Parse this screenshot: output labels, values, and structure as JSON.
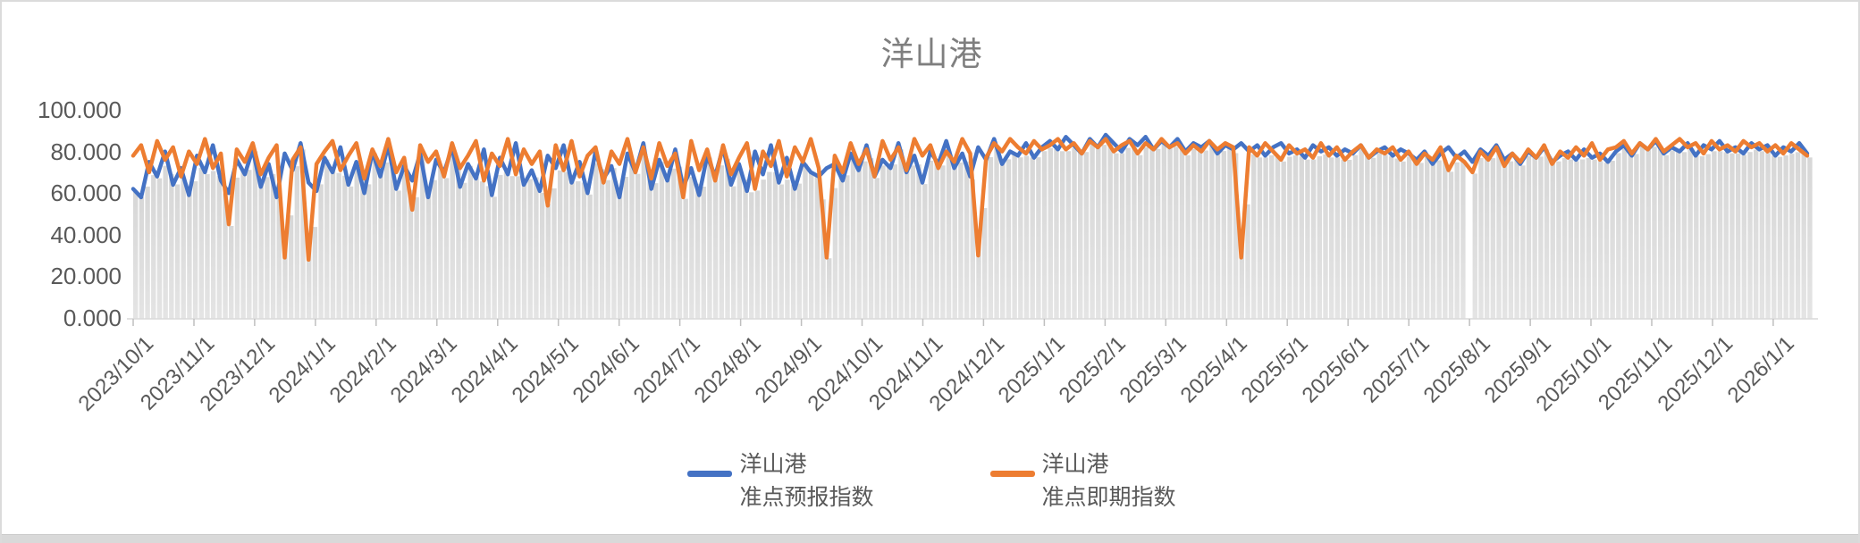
{
  "window": {
    "background": "#ffffff",
    "frame_border_color": "#dbdbdb",
    "bottom_strip_color": "#d9d9d9"
  },
  "chart_data": {
    "type": "line",
    "title": "洋山港",
    "title_color": "#7f7f7f",
    "axis_text_color": "#595959",
    "axis_line_color": "#d9d9d9",
    "grid": "none",
    "legend_position": "bottom",
    "ylim": [
      0,
      100
    ],
    "y_axis_labels": [
      "0.000",
      "20.000",
      "40.000",
      "60.000",
      "80.000",
      "100.000"
    ],
    "y_axis_values": [
      0,
      20,
      40,
      60,
      80,
      100
    ],
    "x_tick_labels": [
      "2023/10/1",
      "2023/11/1",
      "2023/12/1",
      "2024/1/1",
      "2024/2/1",
      "2024/3/1",
      "2024/4/1",
      "2024/5/1",
      "2024/6/1",
      "2024/7/1",
      "2024/8/1",
      "2024/9/1",
      "2024/10/1",
      "2024/11/1",
      "2024/12/1",
      "2025/1/1",
      "2025/2/1",
      "2025/3/1",
      "2025/4/1",
      "2025/5/1",
      "2025/6/1",
      "2025/7/1",
      "2025/8/1",
      "2025/9/1",
      "2025/10/1",
      "2025/11/1",
      "2025/12/1",
      "2026/1/1"
    ],
    "x_start_date": "2023/10/1",
    "x_end_date_approx": "2026/1/20",
    "sample_step_days": 4,
    "background_bars": {
      "description": "light gray vertical bars under the lines tracking the lower envelope of the two series",
      "color_top": "#d7d7d7",
      "color_bottom": "#e4e4e4",
      "gap_days_from_start": [
        667,
        671
      ]
    },
    "series": [
      {
        "name": "洋山港 准点预报指数",
        "color": "#4472C4",
        "values": [
          62,
          58,
          75,
          68,
          80,
          64,
          72,
          59,
          78,
          70,
          83,
          66,
          60,
          76,
          69,
          81,
          63,
          74,
          58,
          79,
          71,
          84,
          65,
          61,
          77,
          70,
          82,
          64,
          75,
          60,
          80,
          68,
          83,
          62,
          73,
          66,
          79,
          58,
          76,
          70,
          82,
          63,
          74,
          67,
          81,
          59,
          77,
          69,
          84,
          64,
          71,
          61,
          78,
          72,
          83,
          65,
          75,
          60,
          80,
          67,
          73,
          58,
          79,
          70,
          84,
          62,
          76,
          66,
          81,
          63,
          72,
          59,
          78,
          68,
          82,
          64,
          74,
          61,
          80,
          69,
          83,
          65,
          77,
          62,
          75,
          70,
          68,
          72,
          74,
          66,
          79,
          71,
          83,
          68,
          76,
          72,
          84,
          70,
          78,
          65,
          80,
          74,
          85,
          72,
          79,
          68,
          82,
          76,
          86,
          74,
          80,
          78,
          84,
          77,
          82,
          85,
          81,
          87,
          83,
          79,
          86,
          82,
          88,
          84,
          80,
          86,
          83,
          87,
          81,
          85,
          82,
          86,
          80,
          84,
          82,
          85,
          79,
          83,
          81,
          84,
          80,
          83,
          78,
          82,
          84,
          79,
          81,
          77,
          83,
          80,
          82,
          78,
          81,
          79,
          83,
          77,
          80,
          82,
          78,
          81,
          79,
          76,
          80,
          74,
          79,
          82,
          77,
          80,
          75,
          81,
          78,
          83,
          76,
          79,
          74,
          80,
          77,
          82,
          75,
          78,
          80,
          76,
          81,
          77,
          79,
          75,
          80,
          83,
          78,
          84,
          81,
          85,
          79,
          82,
          80,
          84,
          78,
          83,
          81,
          85,
          80,
          82,
          79,
          84,
          81,
          83,
          78,
          82,
          80,
          84,
          79
        ]
      },
      {
        "name": "洋山港 准点即期指数",
        "color": "#ED7D31",
        "values": [
          78,
          83,
          70,
          85,
          76,
          82,
          68,
          80,
          74,
          86,
          72,
          79,
          45,
          81,
          75,
          84,
          69,
          77,
          83,
          29,
          76,
          82,
          28,
          74,
          80,
          85,
          71,
          78,
          84,
          67,
          81,
          73,
          86,
          70,
          77,
          52,
          83,
          75,
          80,
          68,
          84,
          72,
          78,
          85,
          66,
          79,
          73,
          86,
          69,
          81,
          74,
          80,
          54,
          83,
          71,
          85,
          68,
          78,
          82,
          65,
          80,
          74,
          86,
          70,
          82,
          67,
          84,
          73,
          79,
          58,
          85,
          71,
          81,
          66,
          83,
          69,
          77,
          84,
          62,
          80,
          73,
          85,
          68,
          82,
          75,
          86,
          72,
          29,
          78,
          70,
          84,
          74,
          81,
          68,
          85,
          76,
          82,
          71,
          86,
          78,
          83,
          72,
          80,
          75,
          86,
          79,
          30,
          77,
          84,
          80,
          86,
          82,
          79,
          85,
          81,
          83,
          86,
          81,
          84,
          79,
          85,
          82,
          86,
          80,
          83,
          85,
          79,
          84,
          81,
          86,
          82,
          84,
          79,
          83,
          80,
          85,
          81,
          84,
          82,
          29,
          82,
          78,
          84,
          80,
          76,
          83,
          79,
          81,
          77,
          84,
          78,
          82,
          76,
          80,
          83,
          77,
          81,
          79,
          82,
          76,
          80,
          74,
          79,
          76,
          82,
          71,
          78,
          75,
          70,
          80,
          76,
          82,
          73,
          79,
          75,
          81,
          77,
          83,
          74,
          80,
          77,
          82,
          78,
          84,
          76,
          81,
          82,
          85,
          79,
          84,
          81,
          86,
          80,
          83,
          86,
          82,
          84,
          79,
          85,
          81,
          83,
          80,
          85,
          82,
          84,
          80,
          83,
          79,
          84,
          81,
          78
        ]
      }
    ]
  },
  "legend": {
    "items": [
      {
        "line1": "洋山港",
        "line2": "准点预报指数",
        "color": "#4472C4"
      },
      {
        "line1": "洋山港",
        "line2": "准点即期指数",
        "color": "#ED7D31"
      }
    ]
  }
}
